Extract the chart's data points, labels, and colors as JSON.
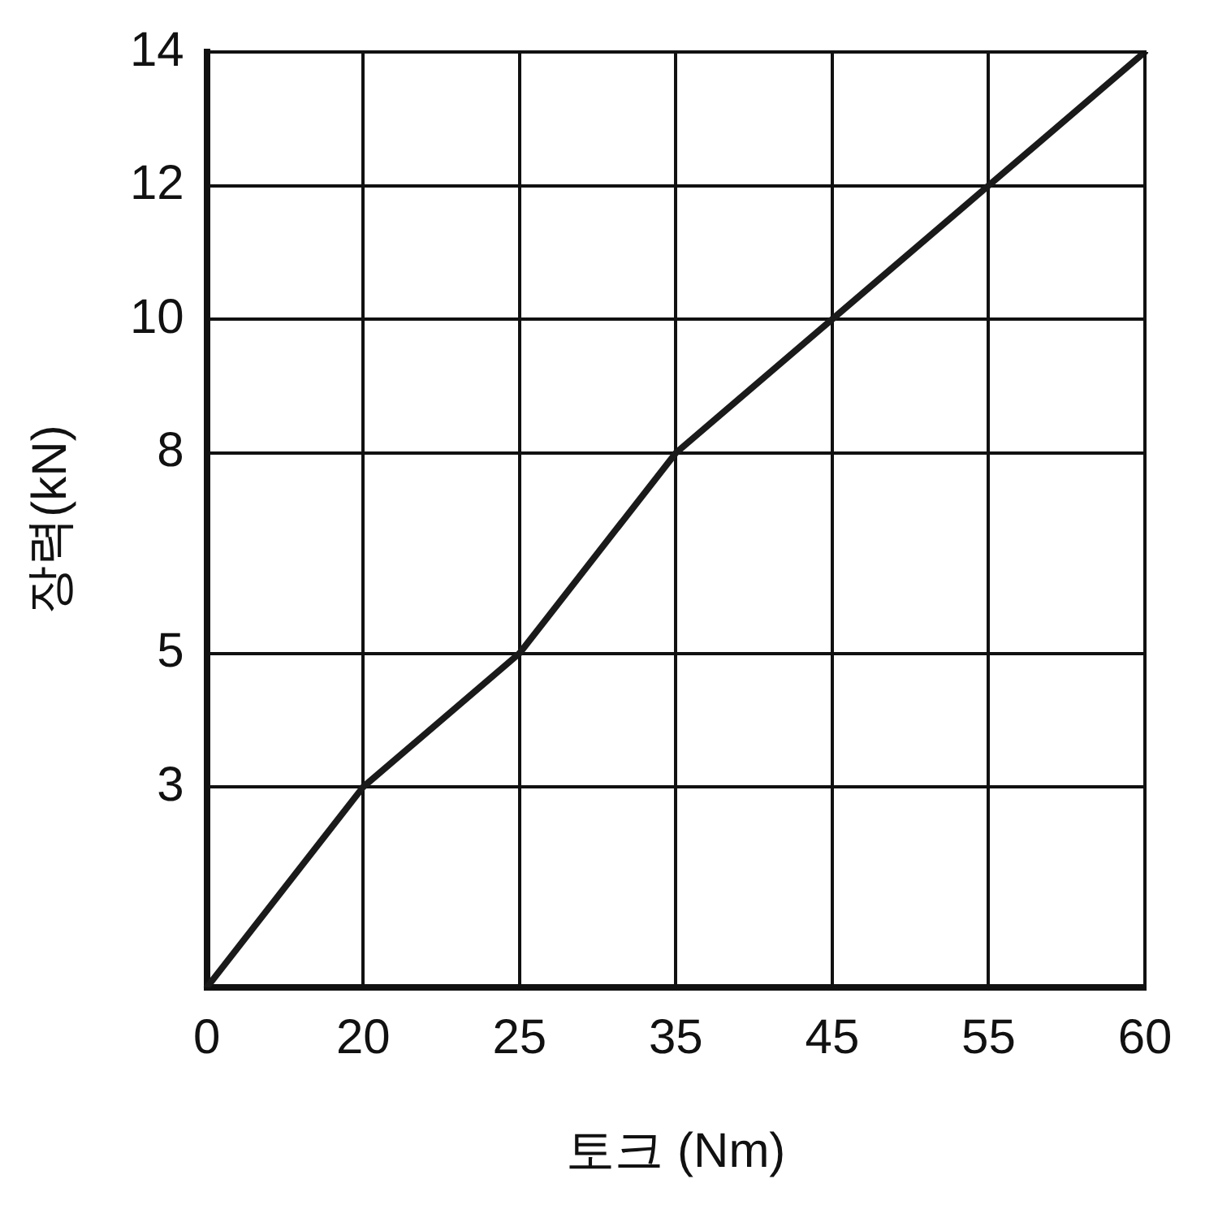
{
  "chart_data": {
    "type": "line",
    "xlabel": "토크 (Nm)",
    "ylabel": "장력(kN)",
    "categories": [
      "0",
      "20",
      "25",
      "35",
      "45",
      "55",
      "60"
    ],
    "values": [
      0,
      3,
      5,
      8,
      10,
      12,
      14
    ],
    "color": "#1a1a1a",
    "ylim": [
      0,
      14
    ],
    "yticks": [
      {
        "value": 0,
        "label": null
      },
      3,
      5,
      8,
      10,
      12,
      14
    ],
    "grid": true,
    "marker": "none",
    "line_style": "solid"
  }
}
